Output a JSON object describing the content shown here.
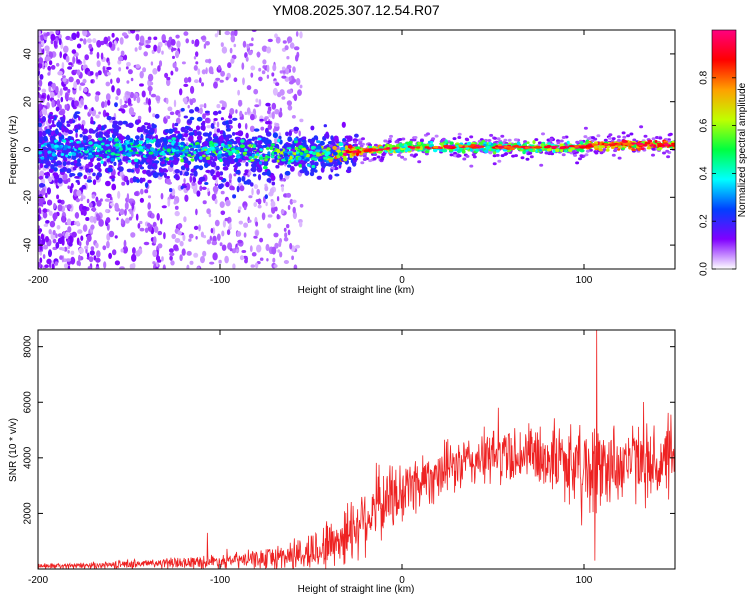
{
  "title": "YM08.2025.307.12.54.R07",
  "chart_data": [
    {
      "type": "heatmap",
      "name": "spectrogram",
      "xlabel": "Height of straight line (km)",
      "ylabel": "Frequency (Hz)",
      "xlim": [
        -200,
        150
      ],
      "ylim": [
        -50,
        50
      ],
      "xticks": [
        -200,
        -100,
        0,
        100
      ],
      "xtick_labels": [
        "-200",
        "-100",
        "0",
        "100"
      ],
      "yticks": [
        -40,
        -20,
        0,
        20,
        40
      ],
      "ytick_labels": [
        "-40",
        "-20",
        "0",
        "20",
        "40"
      ],
      "colorbar": {
        "label": "Normalized spectral amplitude",
        "range": [
          0,
          1
        ],
        "ticks": [
          0.0,
          0.2,
          0.4,
          0.6,
          0.8
        ],
        "tick_labels": [
          "0.0",
          "0.2",
          "0.4",
          "0.6",
          "0.8"
        ],
        "colormap": [
          "#ffffff",
          "#8000ff",
          "#0040ff",
          "#00ffff",
          "#00ff40",
          "#c0ff00",
          "#ffa000",
          "#ff0000",
          "#ff0080"
        ]
      },
      "ridge": {
        "description_points_x": [
          -200,
          -150,
          -100,
          -60,
          -40,
          -30,
          0,
          50,
          100,
          105,
          150
        ],
        "description_points_freq": [
          0,
          0,
          0,
          -2,
          -2,
          -1,
          1,
          1,
          1,
          2,
          2
        ],
        "description_points_amplitude": [
          0.15,
          0.25,
          0.35,
          0.4,
          0.45,
          0.85,
          0.6,
          0.55,
          0.6,
          0.9,
          0.85
        ]
      }
    },
    {
      "type": "line",
      "name": "snr",
      "xlabel": "Height of straight line (km)",
      "ylabel": "SNR (10 * v/v)",
      "xlim": [
        -200,
        150
      ],
      "ylim": [
        0,
        8600
      ],
      "xticks": [
        -200,
        -100,
        0,
        100
      ],
      "xtick_labels": [
        "-200",
        "-100",
        "0",
        "100"
      ],
      "yticks": [
        2000,
        4000,
        6000,
        8000
      ],
      "ytick_labels": [
        "2000",
        "4000",
        "6000",
        "8000"
      ],
      "color": "#ee2222",
      "envelope_x": [
        -200,
        -175,
        -150,
        -125,
        -100,
        -80,
        -65,
        -50,
        -40,
        -30,
        -20,
        -10,
        0,
        10,
        25,
        40,
        55,
        70,
        80,
        90,
        100,
        107,
        115,
        125,
        140,
        150
      ],
      "envelope_mean": [
        100,
        120,
        180,
        220,
        280,
        350,
        450,
        600,
        900,
        1300,
        1900,
        2400,
        2800,
        3200,
        3600,
        3900,
        4100,
        4150,
        4000,
        3900,
        3700,
        3500,
        3800,
        3900,
        3700,
        3900
      ],
      "envelope_spread": [
        80,
        100,
        150,
        180,
        260,
        300,
        500,
        700,
        900,
        1100,
        1200,
        1200,
        1100,
        1000,
        900,
        900,
        1000,
        1000,
        1100,
        1300,
        1400,
        1600,
        1400,
        1300,
        1300,
        1200
      ],
      "spikes": [
        {
          "x": 107,
          "y": 8600
        },
        {
          "x": 106,
          "y": 300
        },
        {
          "x": 53,
          "y": 5800
        },
        {
          "x": 150,
          "y": 5900
        },
        {
          "x": -107,
          "y": 1300
        }
      ]
    }
  ]
}
